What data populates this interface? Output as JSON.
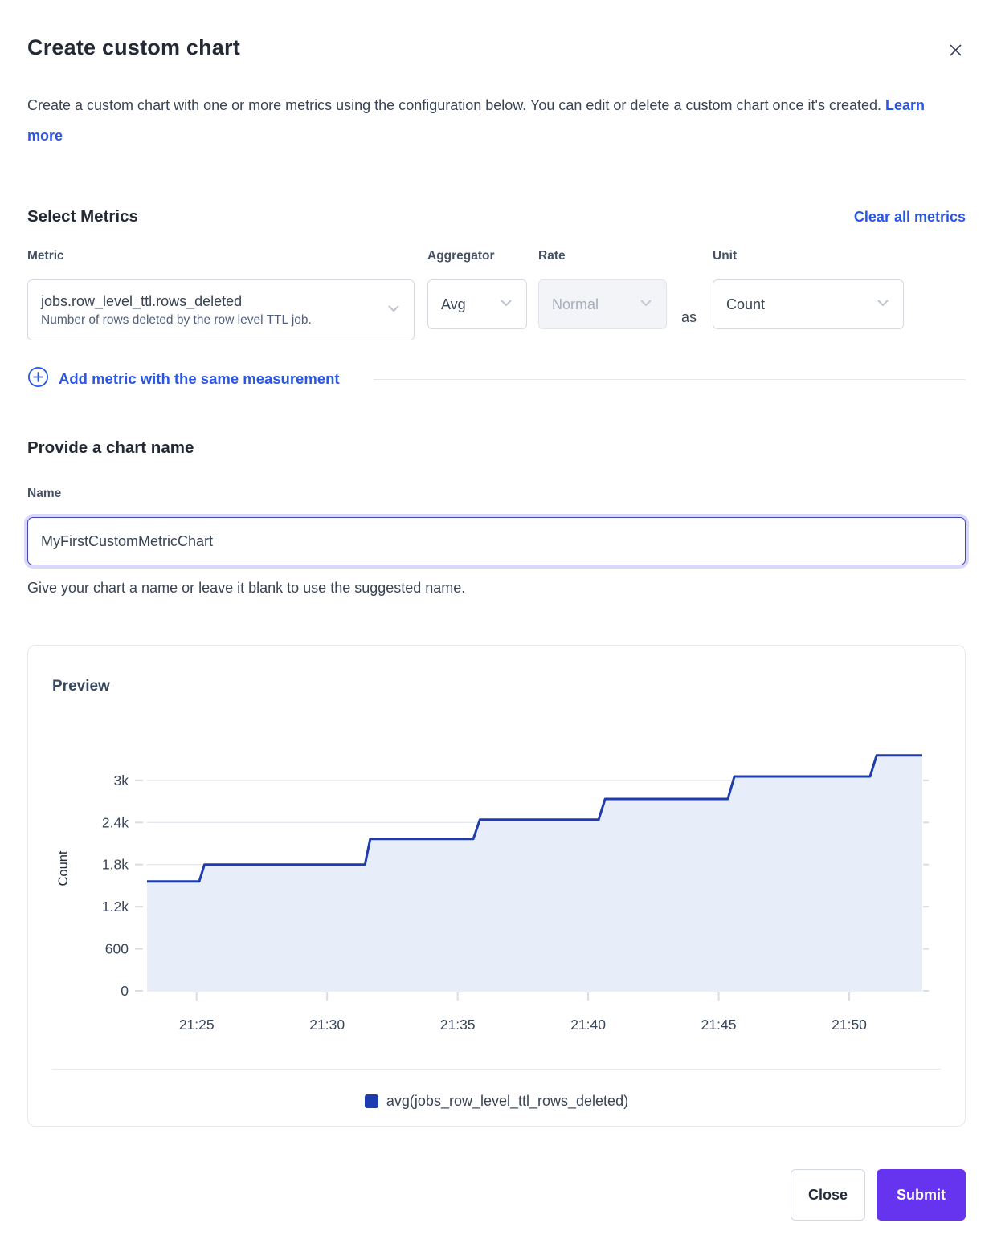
{
  "modal": {
    "title": "Create custom chart",
    "description": "Create a custom chart with one or more metrics using the configuration below. You can edit or delete a custom chart once it's created.",
    "learn_more": "Learn more"
  },
  "metrics": {
    "heading": "Select Metrics",
    "clear_all": "Clear all metrics",
    "labels": {
      "metric": "Metric",
      "aggregator": "Aggregator",
      "rate": "Rate",
      "unit": "Unit"
    },
    "row": {
      "metric_value": "jobs.row_level_ttl.rows_deleted",
      "metric_description": "Number of rows deleted by the row level TTL job.",
      "aggregator_value": "Avg",
      "rate_value": "Normal",
      "rate_disabled": true,
      "as_label": "as",
      "unit_value": "Count"
    },
    "add_metric_label": "Add metric with the same measurement"
  },
  "name_section": {
    "heading": "Provide a chart name",
    "label": "Name",
    "value": "MyFirstCustomMetricChart",
    "helper": "Give your chart a name or leave it blank to use the suggested name."
  },
  "preview": {
    "heading": "Preview"
  },
  "footer": {
    "close_label": "Close",
    "submit_label": "Submit"
  },
  "colors": {
    "accent_link_blue": "#2a56e4",
    "submit_purple": "#6633ee",
    "heading_navy": "#242a35",
    "body_text": "#394455",
    "series_line": "#1e3cae",
    "series_fill": "#e8edfa",
    "grid_line": "#e6e9ef",
    "tick_mark": "#d9dde4"
  },
  "chart_data": {
    "type": "area",
    "title": "Preview",
    "ylabel": "Count",
    "x_axis_note": "x values are minutes after 21:20",
    "xlim": [
      3.1,
      32.8
    ],
    "ylim": [
      0,
      3490
    ],
    "grid": true,
    "legend_position": "bottom-center",
    "x_ticks": [
      {
        "v": 5,
        "label": "21:25"
      },
      {
        "v": 10,
        "label": "21:30"
      },
      {
        "v": 15,
        "label": "21:35"
      },
      {
        "v": 20,
        "label": "21:40"
      },
      {
        "v": 25,
        "label": "21:45"
      },
      {
        "v": 30,
        "label": "21:50"
      }
    ],
    "y_ticks": [
      {
        "v": 0,
        "label": "0"
      },
      {
        "v": 600,
        "label": "600"
      },
      {
        "v": 1200,
        "label": "1.2k"
      },
      {
        "v": 1800,
        "label": "1.8k"
      },
      {
        "v": 2400,
        "label": "2.4k"
      },
      {
        "v": 3000,
        "label": "3k"
      }
    ],
    "series": [
      {
        "name": "avg(jobs_row_level_ttl_rows_deleted)",
        "color": "#1e3cae",
        "fill": "#e8edfa",
        "points": [
          [
            3.1,
            1560
          ],
          [
            5.1,
            1560
          ],
          [
            5.3,
            1800
          ],
          [
            11.45,
            1800
          ],
          [
            11.65,
            2165
          ],
          [
            15.6,
            2165
          ],
          [
            15.85,
            2440
          ],
          [
            20.4,
            2440
          ],
          [
            20.65,
            2735
          ],
          [
            25.35,
            2735
          ],
          [
            25.6,
            3055
          ],
          [
            30.8,
            3055
          ],
          [
            31.05,
            3355
          ],
          [
            32.8,
            3355
          ]
        ]
      }
    ]
  }
}
